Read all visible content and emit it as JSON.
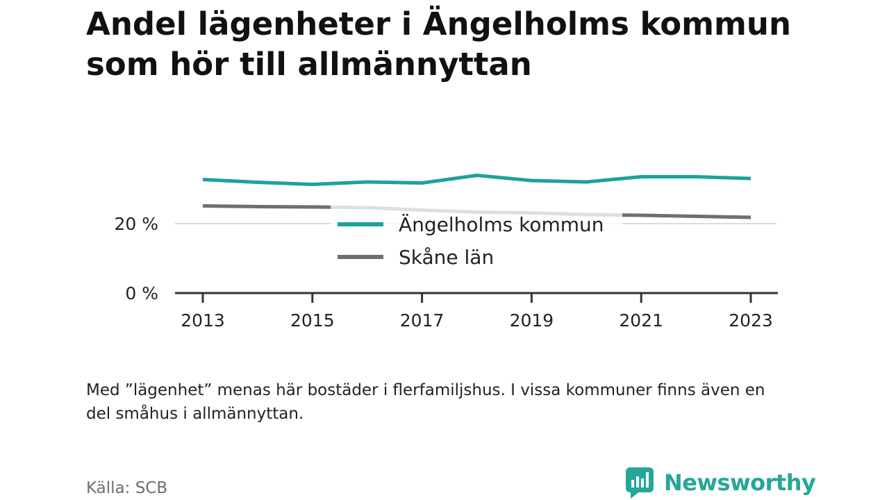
{
  "title": "Andel lägenheter i Ängelholms kommun som hör till allmännyttan",
  "note": "Med ”lägenhet” menas här bostäder i flerfamiljshus. I vissa kommuner finns även en del småhus i allmännyttan.",
  "source": "Källa: SCB",
  "brand": {
    "name": "Newsworthy",
    "icon": "bar-chart-speech-bubble-icon",
    "color": "#26a69a"
  },
  "chart_data": {
    "type": "line",
    "x": [
      2013,
      2014,
      2015,
      2016,
      2017,
      2018,
      2019,
      2020,
      2021,
      2022,
      2023
    ],
    "xticks": [
      "2013",
      "2015",
      "2017",
      "2019",
      "2021",
      "2023"
    ],
    "yticks": [
      "0 %",
      "20 %"
    ],
    "ylim": [
      0,
      40
    ],
    "grid": true,
    "legend_position": "center",
    "series": [
      {
        "name": "Ängelholms kommun",
        "color": "#1ba39c",
        "values": [
          32.7,
          31.9,
          31.3,
          32.0,
          31.7,
          33.9,
          32.4,
          32.0,
          33.5,
          33.5,
          33.0
        ]
      },
      {
        "name": "Skåne län",
        "color": "#6e6e73",
        "values": [
          25.1,
          24.9,
          24.8,
          24.6,
          23.9,
          23.3,
          23.1,
          22.6,
          22.4,
          22.1,
          21.8
        ]
      }
    ]
  }
}
